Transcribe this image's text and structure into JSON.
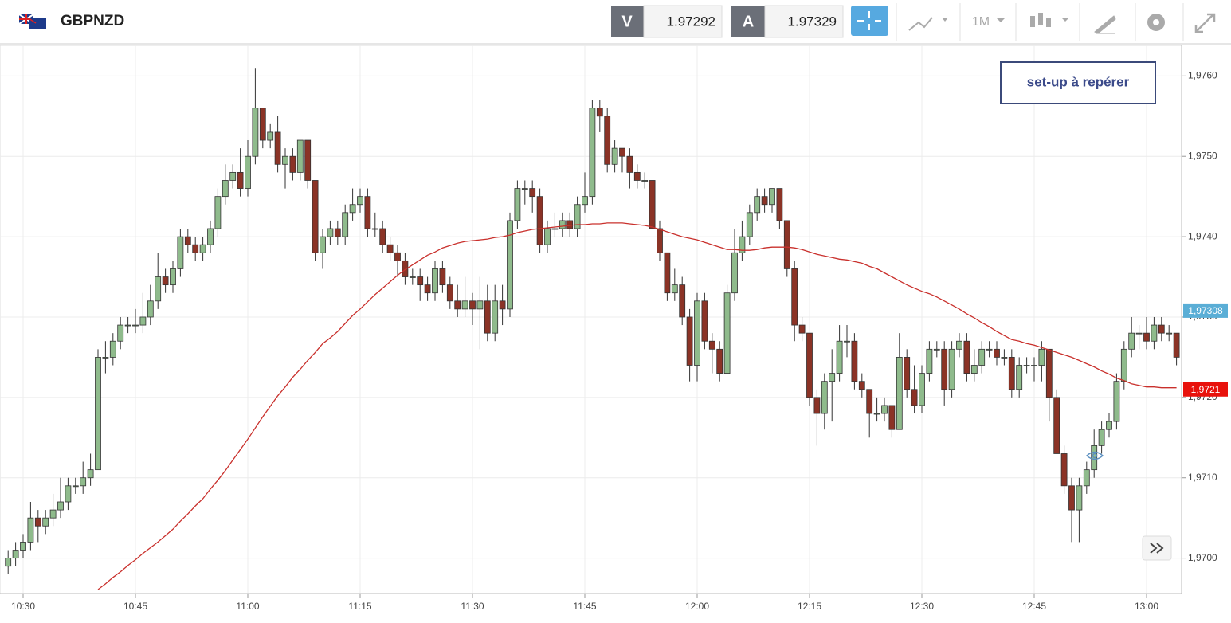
{
  "header": {
    "symbol": "GBPNZD",
    "bid_tag": "V",
    "bid": "1.97292",
    "ask_tag": "A",
    "ask": "1.97329",
    "timeframe": "1M"
  },
  "chart_data": {
    "type": "candlestick",
    "annotation": "set-up à repérer",
    "categories": [
      null,
      null,
      "10:30",
      null,
      null,
      null,
      null,
      null,
      null,
      null,
      null,
      null,
      null,
      null,
      null,
      null,
      null,
      "10:45",
      null,
      null,
      null,
      null,
      null,
      null,
      null,
      null,
      null,
      null,
      null,
      null,
      null,
      null,
      "11:00",
      null,
      null,
      null,
      null,
      null,
      null,
      null,
      null,
      null,
      null,
      null,
      null,
      null,
      null,
      "11:15",
      null,
      null,
      null,
      null,
      null,
      null,
      null,
      null,
      null,
      null,
      null,
      null,
      null,
      null,
      "11:30",
      null,
      null,
      null,
      null,
      null,
      null,
      null,
      null,
      null,
      null,
      null,
      null,
      null,
      null,
      "11:45",
      null,
      null,
      null,
      null,
      null,
      null,
      null,
      null,
      null,
      null,
      null,
      null,
      null,
      null,
      "12:00",
      null,
      null,
      null,
      null,
      null,
      null,
      null,
      null,
      null,
      null,
      null,
      null,
      null,
      null,
      "12:15",
      null,
      null,
      null,
      null,
      null,
      null,
      null,
      null,
      null,
      null,
      null,
      null,
      null,
      null,
      "12:30",
      null,
      null,
      null,
      null,
      null,
      null,
      null,
      null,
      null,
      null,
      null,
      null,
      null,
      null,
      "12:45",
      null,
      null,
      null,
      null,
      null,
      null,
      null,
      null,
      null,
      null,
      null,
      null,
      null,
      null,
      "13:00",
      null,
      null,
      null,
      null
    ],
    "open": [
      1.9699,
      1.97,
      1.9701,
      1.9702,
      1.9705,
      1.9704,
      1.9705,
      1.9706,
      1.9707,
      1.9709,
      1.9709,
      1.971,
      1.9711,
      1.9725,
      1.9725,
      1.9727,
      1.9729,
      1.9729,
      1.9729,
      1.973,
      1.9732,
      1.9735,
      1.9734,
      1.9736,
      1.974,
      1.9739,
      1.9738,
      1.9739,
      1.9741,
      1.9745,
      1.9747,
      1.9748,
      1.9746,
      1.975,
      1.9756,
      1.9752,
      1.9753,
      1.9749,
      1.975,
      1.9748,
      1.9752,
      1.9747,
      1.9738,
      1.974,
      1.9741,
      1.974,
      1.9743,
      1.9744,
      1.9745,
      1.9741,
      1.9741,
      1.9739,
      1.9738,
      1.9737,
      1.9735,
      1.9735,
      1.9734,
      1.9733,
      1.9736,
      1.9734,
      1.9732,
      1.9731,
      1.9732,
      1.9731,
      1.9732,
      1.9728,
      1.9732,
      1.9731,
      1.9742,
      1.9746,
      1.9746,
      1.9745,
      1.9739,
      1.9741,
      1.9741,
      1.9742,
      1.9741,
      1.9744,
      1.9745,
      1.9756,
      1.9755,
      1.9749,
      1.9751,
      1.975,
      1.9748,
      1.9747,
      1.9747,
      1.9741,
      1.9738,
      1.9733,
      1.9734,
      1.973,
      1.9724,
      1.9732,
      1.9727,
      1.9726,
      1.9723,
      1.9733,
      1.9738,
      1.974,
      1.9743,
      1.9745,
      1.9744,
      1.9746,
      1.9742,
      1.9736,
      1.9729,
      1.9728,
      1.972,
      1.9718,
      1.9722,
      1.9723,
      1.9727,
      1.9727,
      1.9722,
      1.9721,
      1.9718,
      1.9718,
      1.9719,
      1.9716,
      1.9725,
      1.9721,
      1.9719,
      1.9723,
      1.9726,
      1.9726,
      1.9721,
      1.9726,
      1.9727,
      1.9723,
      1.9724,
      1.9726,
      1.9726,
      1.9725,
      1.9725,
      1.9721,
      1.9724,
      1.9724,
      1.9724,
      1.9726,
      1.972,
      1.9713,
      1.9709,
      1.9706,
      1.9709,
      1.9711,
      1.9714,
      1.9716,
      1.9717,
      1.9722,
      1.9726,
      1.9728,
      1.9728,
      1.9727,
      1.9729,
      1.9728,
      1.9728
    ],
    "high": [
      1.9701,
      1.9702,
      1.9703,
      1.9707,
      1.9706,
      1.9706,
      1.9708,
      1.971,
      1.971,
      1.971,
      1.9712,
      1.9713,
      1.9726,
      1.9727,
      1.9728,
      1.973,
      1.973,
      1.9731,
      1.9733,
      1.9734,
      1.9738,
      1.9736,
      1.9737,
      1.9741,
      1.9741,
      1.974,
      1.974,
      1.9742,
      1.9746,
      1.9749,
      1.9749,
      1.9751,
      1.9752,
      1.9761,
      1.9756,
      1.9754,
      1.9755,
      1.9751,
      1.9751,
      1.9752,
      1.9752,
      1.9747,
      1.9741,
      1.9742,
      1.9742,
      1.9744,
      1.9746,
      1.9746,
      1.9746,
      1.9743,
      1.9742,
      1.974,
      1.9739,
      1.9738,
      1.9736,
      1.9736,
      1.9735,
      1.9737,
      1.9737,
      1.9735,
      1.9734,
      1.9735,
      1.9733,
      1.9735,
      1.9734,
      1.9734,
      1.9734,
      1.9743,
      1.9747,
      1.9747,
      1.9747,
      1.9746,
      1.9742,
      1.9743,
      1.9743,
      1.9743,
      1.9745,
      1.9748,
      1.9757,
      1.9757,
      1.9756,
      1.9752,
      1.9751,
      1.9751,
      1.9749,
      1.9748,
      1.9747,
      1.9742,
      1.9738,
      1.9736,
      1.9735,
      1.9731,
      1.9733,
      1.9733,
      1.9728,
      1.9727,
      1.9734,
      1.9741,
      1.9742,
      1.9744,
      1.9746,
      1.9746,
      1.9746,
      1.9746,
      1.9742,
      1.9737,
      1.973,
      1.9728,
      1.9721,
      1.9723,
      1.9726,
      1.9729,
      1.9729,
      1.9728,
      1.9723,
      1.9721,
      1.972,
      1.972,
      1.9719,
      1.9728,
      1.9726,
      1.9724,
      1.9724,
      1.9727,
      1.9727,
      1.9727,
      1.9727,
      1.9728,
      1.9728,
      1.9726,
      1.9727,
      1.9727,
      1.9727,
      1.9726,
      1.9726,
      1.9725,
      1.9725,
      1.9725,
      1.9727,
      1.9726,
      1.9721,
      1.9714,
      1.971,
      1.971,
      1.9712,
      1.9716,
      1.9717,
      1.9718,
      1.9723,
      1.9727,
      1.973,
      1.9729,
      1.973,
      1.973,
      1.973,
      1.9729,
      1.9728
    ],
    "low": [
      1.9698,
      1.9699,
      1.97,
      1.9701,
      1.9702,
      1.9703,
      1.9704,
      1.9705,
      1.9706,
      1.9708,
      1.9708,
      1.9709,
      1.9711,
      1.9723,
      1.9724,
      1.9726,
      1.9728,
      1.9728,
      1.9728,
      1.9729,
      1.9731,
      1.9733,
      1.9733,
      1.9735,
      1.9738,
      1.9737,
      1.9737,
      1.9738,
      1.974,
      1.9744,
      1.9746,
      1.9745,
      1.9745,
      1.9749,
      1.9751,
      1.9751,
      1.9748,
      1.9746,
      1.9747,
      1.9747,
      1.9746,
      1.9737,
      1.9736,
      1.9739,
      1.9739,
      1.9739,
      1.9742,
      1.9743,
      1.974,
      1.974,
      1.9738,
      1.9737,
      1.9735,
      1.9734,
      1.9734,
      1.9732,
      1.9732,
      1.9732,
      1.9733,
      1.9731,
      1.973,
      1.973,
      1.9729,
      1.9726,
      1.9727,
      1.9727,
      1.9729,
      1.973,
      1.9741,
      1.9744,
      1.9743,
      1.9738,
      1.9738,
      1.974,
      1.974,
      1.974,
      1.974,
      1.9743,
      1.9744,
      1.9753,
      1.9748,
      1.9748,
      1.9748,
      1.9746,
      1.9746,
      1.9746,
      1.9741,
      1.9737,
      1.9732,
      1.9732,
      1.9729,
      1.9722,
      1.9722,
      1.9726,
      1.9723,
      1.9722,
      1.9723,
      1.9732,
      1.9737,
      1.9739,
      1.9742,
      1.9743,
      1.9743,
      1.9741,
      1.9735,
      1.9727,
      1.9727,
      1.9719,
      1.9714,
      1.9716,
      1.9717,
      1.9722,
      1.9725,
      1.9721,
      1.972,
      1.9715,
      1.9717,
      1.9717,
      1.9715,
      1.9716,
      1.972,
      1.9718,
      1.9718,
      1.9722,
      1.9725,
      1.9719,
      1.972,
      1.9725,
      1.9722,
      1.9722,
      1.9723,
      1.9725,
      1.9724,
      1.9724,
      1.972,
      1.972,
      1.9723,
      1.9722,
      1.9722,
      1.9717,
      1.9713,
      1.9708,
      1.9702,
      1.9702,
      1.9708,
      1.971,
      1.9713,
      1.9715,
      1.9716,
      1.9721,
      1.9725,
      1.9726,
      1.9726,
      1.9726,
      1.9727,
      1.9727,
      1.9724
    ],
    "close": [
      1.97,
      1.9701,
      1.9702,
      1.9705,
      1.9704,
      1.9705,
      1.9706,
      1.9707,
      1.9709,
      1.9709,
      1.971,
      1.9711,
      1.9725,
      1.9725,
      1.9727,
      1.9729,
      1.9729,
      1.9729,
      1.973,
      1.9732,
      1.9735,
      1.9734,
      1.9736,
      1.974,
      1.9739,
      1.9738,
      1.9739,
      1.9741,
      1.9745,
      1.9747,
      1.9748,
      1.9746,
      1.975,
      1.9756,
      1.9752,
      1.9753,
      1.9749,
      1.975,
      1.9748,
      1.9752,
      1.9747,
      1.9738,
      1.974,
      1.9741,
      1.974,
      1.9743,
      1.9744,
      1.9745,
      1.9741,
      1.9741,
      1.9739,
      1.9738,
      1.9737,
      1.9735,
      1.9735,
      1.9734,
      1.9733,
      1.9736,
      1.9734,
      1.9732,
      1.9731,
      1.9732,
      1.9731,
      1.9732,
      1.9728,
      1.9732,
      1.9731,
      1.9742,
      1.9746,
      1.9746,
      1.9745,
      1.9739,
      1.9741,
      1.9741,
      1.9742,
      1.9741,
      1.9744,
      1.9745,
      1.9756,
      1.9755,
      1.9749,
      1.9751,
      1.975,
      1.9748,
      1.9747,
      1.9747,
      1.9741,
      1.9738,
      1.9733,
      1.9734,
      1.973,
      1.9724,
      1.9732,
      1.9727,
      1.9726,
      1.9723,
      1.9733,
      1.9738,
      1.974,
      1.9743,
      1.9745,
      1.9744,
      1.9746,
      1.9742,
      1.9736,
      1.9729,
      1.9728,
      1.972,
      1.9718,
      1.9722,
      1.9723,
      1.9727,
      1.9727,
      1.9722,
      1.9721,
      1.9718,
      1.9718,
      1.9719,
      1.9716,
      1.9725,
      1.9721,
      1.9719,
      1.9723,
      1.9726,
      1.9726,
      1.9721,
      1.9726,
      1.9727,
      1.9723,
      1.9724,
      1.9726,
      1.9726,
      1.9725,
      1.9725,
      1.9721,
      1.9724,
      1.9724,
      1.9724,
      1.9726,
      1.972,
      1.9713,
      1.9709,
      1.9706,
      1.9709,
      1.9711,
      1.9714,
      1.9716,
      1.9717,
      1.9722,
      1.9726,
      1.9728,
      1.9728,
      1.9727,
      1.9729,
      1.9728,
      1.9728,
      1.9725
    ],
    "up_color": "#8fbb8c",
    "down_color": "#8b3326",
    "ma": {
      "color": "#c9302c",
      "values": [
        null,
        null,
        null,
        null,
        null,
        null,
        null,
        null,
        null,
        null,
        null,
        null,
        1.96961,
        1.96968,
        1.96976,
        1.96983,
        1.96991,
        1.96998,
        1.97006,
        1.97013,
        1.9702,
        1.97028,
        1.97036,
        1.97046,
        1.97055,
        1.97065,
        1.97074,
        1.97086,
        1.97097,
        1.97109,
        1.97122,
        1.97135,
        1.97148,
        1.97162,
        1.97176,
        1.97189,
        1.97202,
        1.97213,
        1.97225,
        1.97235,
        1.97246,
        1.97256,
        1.97267,
        1.97274,
        1.97282,
        1.97292,
        1.97302,
        1.9731,
        1.97319,
        1.97328,
        1.97336,
        1.97344,
        1.97352,
        1.97359,
        1.97365,
        1.97371,
        1.97377,
        1.97381,
        1.97386,
        1.97389,
        1.97392,
        1.97394,
        1.97395,
        1.97396,
        1.97397,
        1.97399,
        1.974,
        1.97402,
        1.97405,
        1.97407,
        1.97409,
        1.9741,
        1.97411,
        1.97412,
        1.97413,
        1.97414,
        1.97415,
        1.97415,
        1.97416,
        1.97416,
        1.97417,
        1.97417,
        1.97417,
        1.97416,
        1.97415,
        1.97414,
        1.97412,
        1.97409,
        1.97406,
        1.97403,
        1.974,
        1.97398,
        1.97396,
        1.97393,
        1.9739,
        1.97387,
        1.97384,
        1.97384,
        1.97383,
        1.97383,
        1.97384,
        1.97386,
        1.97387,
        1.97387,
        1.97387,
        1.97386,
        1.97384,
        1.97381,
        1.97378,
        1.97376,
        1.97374,
        1.97372,
        1.97371,
        1.97369,
        1.97367,
        1.97363,
        1.9736,
        1.97355,
        1.9735,
        1.97345,
        1.9734,
        1.97336,
        1.97332,
        1.97329,
        1.97325,
        1.9732,
        1.97315,
        1.9731,
        1.97304,
        1.97299,
        1.97293,
        1.97288,
        1.97282,
        1.97277,
        1.97272,
        1.9727,
        1.97267,
        1.97265,
        1.97262,
        1.97259,
        1.97256,
        1.97253,
        1.9725,
        1.97246,
        1.97242,
        1.97238,
        1.97233,
        1.97229,
        1.97224,
        1.97221,
        1.97217,
        1.97215,
        1.97213,
        1.97213,
        1.97212,
        1.97212,
        1.97212
      ]
    },
    "price_label": {
      "value": 1.97308,
      "label": "1,97308",
      "color": "#5aaed6"
    },
    "ma_label": {
      "value": 1.9721,
      "label": "1,9721",
      "color": "#e8120c"
    },
    "ylim": [
      1.96956,
      1.97638
    ],
    "yticks": [
      {
        "value": 1.97,
        "label": "1,9700"
      },
      {
        "value": 1.971,
        "label": "1,9710"
      },
      {
        "value": 1.972,
        "label": "1,9720"
      },
      {
        "value": 1.973,
        "label": "1,9730"
      },
      {
        "value": 1.974,
        "label": "1,9740"
      },
      {
        "value": 1.975,
        "label": "1,9750"
      },
      {
        "value": 1.976,
        "label": "1,9760"
      }
    ],
    "grid": true
  }
}
